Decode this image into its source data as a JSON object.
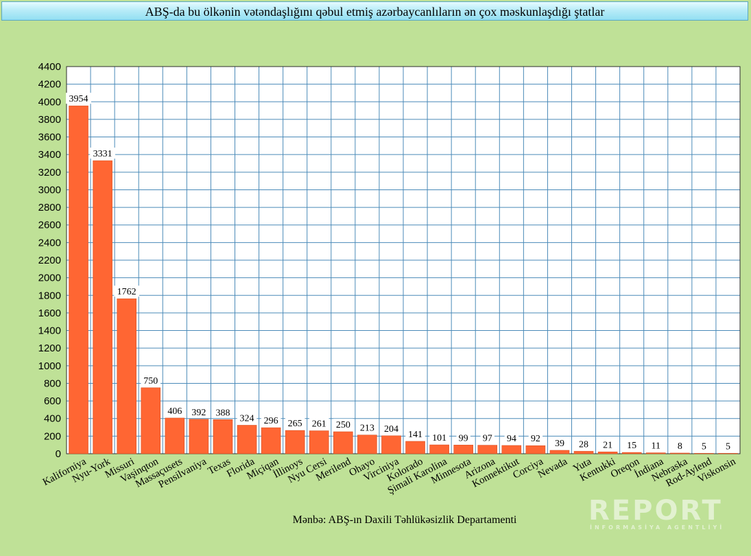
{
  "title": "ABŞ-da bu ölkənin vətəndaşlığını qəbul etmiş azərbaycanlıların ən çox məskunlaşdığı ştatlar",
  "source": "Mənbə: ABŞ-ın Daxili Təhlükəsizlik Departamenti",
  "watermark": {
    "brand": "REPORT",
    "tagline": "İNFORMASİYA AGENTLİYİ"
  },
  "colors": {
    "background": "#bfe197",
    "bar": "#ff6633",
    "grid": "#4a8ab8",
    "plot_background": "#ffffff"
  },
  "chart_data": {
    "type": "bar",
    "title": "ABŞ-da bu ölkənin vətəndaşlığını qəbul etmiş azərbaycanlıların ən çox məskunlaşdığı ştatlar",
    "xlabel": "",
    "ylabel": "",
    "ylim": [
      0,
      4400
    ],
    "y_ticks": [
      0,
      200,
      400,
      600,
      800,
      1000,
      1200,
      1400,
      1600,
      1800,
      2000,
      2200,
      2400,
      2600,
      2800,
      3000,
      3200,
      3400,
      3600,
      3800,
      4000,
      4200,
      4400
    ],
    "grid": true,
    "legend": "none",
    "categories": [
      "Kaliforniya",
      "Nyu-York",
      "Missuri",
      "Vaşinqton",
      "Massaçusets",
      "Pensilvaniya",
      "Texas",
      "Florida",
      "Miçiqan",
      "İllinoys",
      "Nyu Cersi",
      "Merilend",
      "Ohayo",
      "Virciniya",
      "Kolorado",
      "Şimali Karolina",
      "Minnesota",
      "Arizona",
      "Konnektikut",
      "Corciya",
      "Nevada",
      "Yuta",
      "Kentukki",
      "Oreqon",
      "İndiana",
      "Nebraska",
      "Rod-Aylend",
      "Viskonsin"
    ],
    "values": [
      3954,
      3331,
      1762,
      750,
      406,
      392,
      388,
      324,
      296,
      265,
      261,
      250,
      213,
      204,
      141,
      101,
      99,
      97,
      94,
      92,
      39,
      28,
      21,
      15,
      11,
      8,
      5,
      5
    ]
  }
}
